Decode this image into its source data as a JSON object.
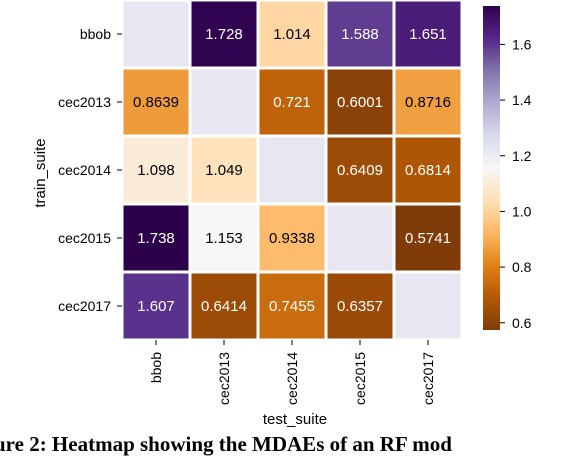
{
  "chart_data": {
    "type": "heatmap",
    "xlabel": "test_suite",
    "ylabel": "train_suite",
    "x_categories": [
      "bbob",
      "cec2013",
      "cec2014",
      "cec2015",
      "cec2017"
    ],
    "y_categories": [
      "bbob",
      "cec2013",
      "cec2014",
      "cec2015",
      "cec2017"
    ],
    "values": [
      [
        null,
        "1.728",
        "1.014",
        "1.588",
        "1.651"
      ],
      [
        "0.8639",
        null,
        "0.721",
        "0.6001",
        "0.8716"
      ],
      [
        "1.098",
        "1.049",
        null,
        "0.6409",
        "0.6814"
      ],
      [
        "1.738",
        "1.153",
        "0.9338",
        null,
        "0.5741"
      ],
      [
        "1.607",
        "0.6414",
        "0.7455",
        "0.6357",
        null
      ]
    ],
    "missing_color": "#e8e7f1",
    "colormap": "PuOr",
    "colorbar": {
      "range": [
        0.574,
        1.738
      ],
      "ticks": [
        "0.6",
        "0.8",
        "1.0",
        "1.2",
        "1.4",
        "1.6"
      ]
    }
  },
  "caption": "ure 2: Heatmap showing the MDAEs of an RF mod"
}
